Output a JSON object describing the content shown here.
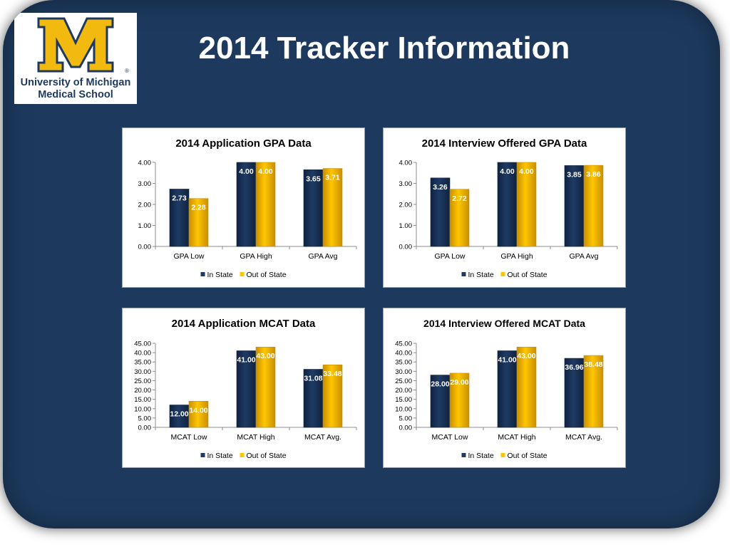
{
  "page": {
    "title": "2014 Tracker Information",
    "logo": {
      "letter": "M",
      "line1": "University of Michigan",
      "line2": "Medical School",
      "registered": "®"
    }
  },
  "colors": {
    "background": "#1d3a5e",
    "in_state": "#1f3b63",
    "out_of_state": "#ffc600",
    "logo_blue": "#1d3a5e",
    "logo_maize": "#f2b90f"
  },
  "chart_data": [
    {
      "type": "bar",
      "title": "2014 Application GPA Data",
      "categories": [
        "GPA Low",
        "GPA High",
        "GPA Avg"
      ],
      "series": [
        {
          "name": "In State",
          "values": [
            2.73,
            4.0,
            3.65
          ],
          "labels": [
            "2.73",
            "4.00",
            "3.65"
          ]
        },
        {
          "name": "Out of State",
          "values": [
            2.28,
            4.0,
            3.71
          ],
          "labels": [
            "2.28",
            "4.00",
            "3.71"
          ]
        }
      ],
      "ylim": [
        0,
        4
      ],
      "yticks": [
        "0.00",
        "1.00",
        "2.00",
        "3.00",
        "4.00"
      ],
      "legend": "bottom",
      "grid": false
    },
    {
      "type": "bar",
      "title": "2014 Interview Offered GPA Data",
      "categories": [
        "GPA Low",
        "GPA High",
        "GPA Avg"
      ],
      "series": [
        {
          "name": "In State",
          "values": [
            3.26,
            4.0,
            3.85
          ],
          "labels": [
            "3.26",
            "4.00",
            "3.85"
          ]
        },
        {
          "name": "Out of State",
          "values": [
            2.72,
            4.0,
            3.86
          ],
          "labels": [
            "2.72",
            "4.00",
            "3.86"
          ]
        }
      ],
      "ylim": [
        0,
        4
      ],
      "yticks": [
        "0.00",
        "1.00",
        "2.00",
        "3.00",
        "4.00"
      ],
      "legend": "bottom",
      "grid": false
    },
    {
      "type": "bar",
      "title": "2014 Application MCAT Data",
      "categories": [
        "MCAT Low",
        "MCAT High",
        "MCAT Avg."
      ],
      "series": [
        {
          "name": "In State",
          "values": [
            12.0,
            41.0,
            31.08
          ],
          "labels": [
            "12.00",
            "41.00",
            "31.08"
          ]
        },
        {
          "name": "Out of State",
          "values": [
            14.0,
            43.0,
            33.48
          ],
          "labels": [
            "14.00",
            "43.00",
            "33.48"
          ]
        }
      ],
      "ylim": [
        0,
        45
      ],
      "yticks": [
        "0.00",
        "5.00",
        "10.00",
        "15.00",
        "20.00",
        "25.00",
        "30.00",
        "35.00",
        "40.00",
        "45.00"
      ],
      "legend": "bottom",
      "grid": false
    },
    {
      "type": "bar",
      "title": "2014 Interview Offered MCAT Data",
      "categories": [
        "MCAT Low",
        "MCAT High",
        "MCAT Avg."
      ],
      "series": [
        {
          "name": "In State",
          "values": [
            28.0,
            41.0,
            36.96
          ],
          "labels": [
            "28.00",
            "41.00",
            "36.96"
          ]
        },
        {
          "name": "Out of State",
          "values": [
            29.0,
            43.0,
            38.48
          ],
          "labels": [
            "29.00",
            "43.00",
            "38.48"
          ]
        }
      ],
      "ylim": [
        0,
        45
      ],
      "yticks": [
        "0.00",
        "5.00",
        "10.00",
        "15.00",
        "20.00",
        "25.00",
        "30.00",
        "35.00",
        "40.00",
        "45.00"
      ],
      "legend": "bottom",
      "grid": false
    }
  ]
}
